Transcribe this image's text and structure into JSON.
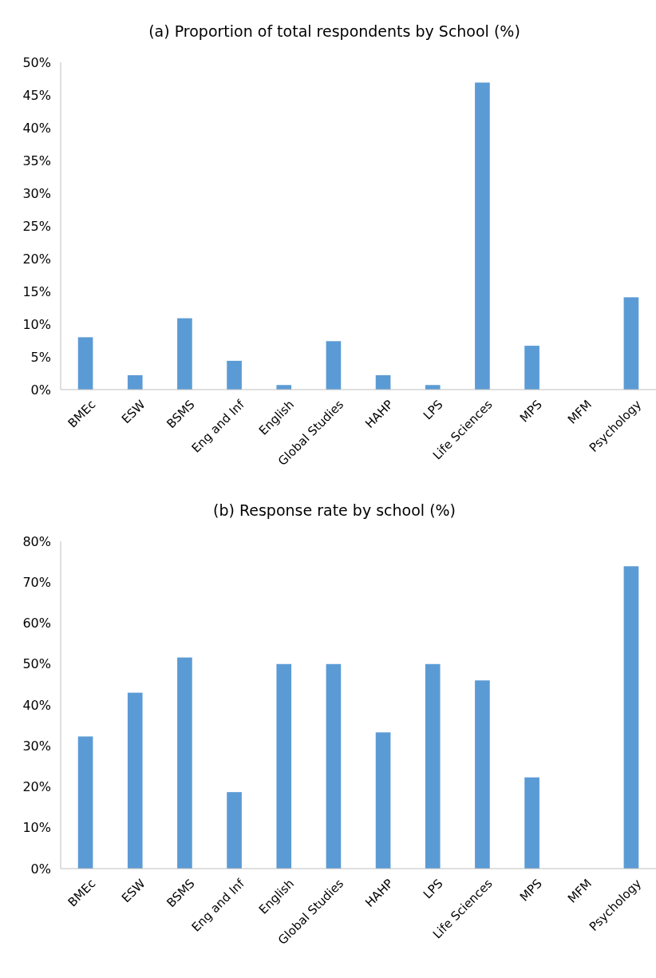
{
  "chart_data": [
    {
      "type": "bar",
      "title": "(a) Proportion of total respondents by School (%)",
      "categories": [
        "BMEc",
        "ESW",
        "BSMS",
        "Eng and Inf",
        "English",
        "Global Studies",
        "HAHP",
        "LPS",
        "Life Sciences",
        "MPS",
        "MFM",
        "Psychology"
      ],
      "values": [
        8.0,
        2.2,
        10.9,
        4.4,
        0.7,
        7.4,
        2.2,
        0.7,
        46.9,
        6.7,
        0,
        14.1
      ],
      "color": "#5b9bd5",
      "ylim": [
        0,
        50
      ],
      "yticks": [
        {
          "value": 0,
          "label": "0%"
        },
        {
          "value": 5,
          "label": "5%"
        },
        {
          "value": 10,
          "label": "10%"
        },
        {
          "value": 15,
          "label": "15%"
        },
        {
          "value": 20,
          "label": "20%"
        },
        {
          "value": 25,
          "label": "25%"
        },
        {
          "value": 30,
          "label": "30%"
        },
        {
          "value": 35,
          "label": "35%"
        },
        {
          "value": 40,
          "label": "40%"
        },
        {
          "value": 45,
          "label": "45%"
        },
        {
          "value": 50,
          "label": "50%"
        }
      ],
      "grid": false
    },
    {
      "type": "bar",
      "title": "(b) Response rate by school (%)",
      "categories": [
        "BMEc",
        "ESW",
        "BSMS",
        "Eng and Inf",
        "English",
        "Global Studies",
        "HAHP",
        "LPS",
        "Life Sciences",
        "MPS",
        "MFM",
        "Psychology"
      ],
      "values": [
        32.3,
        43.0,
        51.6,
        18.7,
        50,
        50,
        33.3,
        50,
        46.0,
        22.3,
        0,
        73.9
      ],
      "color": "#5b9bd5",
      "ylim": [
        0,
        80
      ],
      "yticks": [
        {
          "value": 0,
          "label": "0%"
        },
        {
          "value": 10,
          "label": "10%"
        },
        {
          "value": 20,
          "label": "20%"
        },
        {
          "value": 30,
          "label": "30%"
        },
        {
          "value": 40,
          "label": "40%"
        },
        {
          "value": 50,
          "label": "50%"
        },
        {
          "value": 60,
          "label": "60%"
        },
        {
          "value": 70,
          "label": "70%"
        },
        {
          "value": 80,
          "label": "80%"
        }
      ],
      "grid": false
    }
  ]
}
